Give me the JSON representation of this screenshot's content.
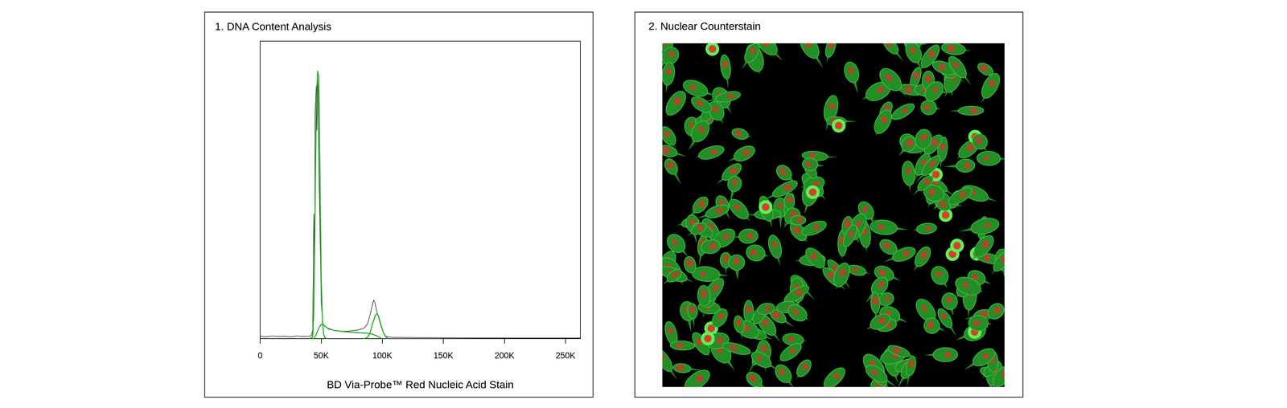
{
  "chart_data": {
    "type": "line",
    "title": "1. DNA Content Analysis",
    "x_label": "BD Via-Probe™ Red Nucleic Acid Stain",
    "xlim": [
      0,
      262144
    ],
    "xticks": [
      0,
      {
        "value": 50000,
        "label": "50K"
      },
      {
        "value": 100000,
        "label": "100K"
      },
      {
        "value": 150000,
        "label": "150K"
      },
      {
        "value": 200000,
        "label": "200K"
      },
      {
        "value": 250000,
        "label": "250K"
      }
    ],
    "ylim": [
      0,
      100
    ],
    "tick_labels": "x",
    "grid": false,
    "series": [
      {
        "color": "#000000",
        "x": [
          0,
          5000,
          10000,
          15000,
          20000,
          25000,
          30000,
          35000,
          40000,
          42000,
          43000,
          44000,
          44500,
          45000,
          46000,
          46500,
          47000,
          47500,
          48000,
          49000,
          50000,
          51000,
          52000,
          54000,
          56000,
          60000,
          65000,
          70000,
          75000,
          80000,
          85000,
          88000,
          90000,
          92000,
          93000,
          94000,
          95000,
          97000,
          99000,
          101000,
          103000,
          106000,
          110000,
          150000,
          200000,
          262000
        ],
        "values": [
          0.8,
          0.6,
          0.9,
          0.7,
          0.8,
          0.6,
          0.9,
          0.7,
          0.8,
          1.0,
          3,
          42,
          20,
          76,
          85,
          70,
          88,
          82,
          60,
          36,
          12,
          6,
          4.5,
          3.8,
          3.2,
          2.8,
          2.6,
          2.5,
          2.6,
          2.9,
          3.5,
          5,
          8,
          11.5,
          13,
          12,
          10,
          7,
          4,
          2,
          0.8,
          0.5,
          0.4,
          0.3,
          0.2,
          0.2
        ]
      },
      {
        "color": "#2db52d",
        "x": [
          40000,
          43000,
          44000,
          45000,
          46000,
          47000,
          48000,
          49000,
          50000,
          51000,
          52000,
          53000,
          55000
        ],
        "values": [
          0,
          0.5,
          10,
          45,
          78,
          90,
          88,
          55,
          20,
          6,
          1.5,
          0.3,
          0
        ]
      },
      {
        "color": "#2db52d",
        "x": [
          44000,
          46000,
          48000,
          50000,
          52000,
          55000,
          60000,
          70000,
          80000,
          88000,
          92000,
          95000,
          98000,
          100000
        ],
        "values": [
          0,
          1.5,
          3.5,
          4.8,
          4.5,
          3.6,
          2.8,
          2.3,
          2.0,
          1.8,
          1.5,
          1.0,
          0.4,
          0
        ]
      },
      {
        "color": "#2db52d",
        "x": [
          85000,
          88000,
          90000,
          92000,
          94000,
          95000,
          96000,
          97000,
          99000,
          101000,
          103000,
          105000
        ],
        "values": [
          0,
          0.5,
          2,
          5,
          7.5,
          8.2,
          8.3,
          7.5,
          4.5,
          2,
          0.5,
          0
        ]
      }
    ]
  },
  "image_panel": {
    "title": "2. Nuclear Counterstain"
  }
}
